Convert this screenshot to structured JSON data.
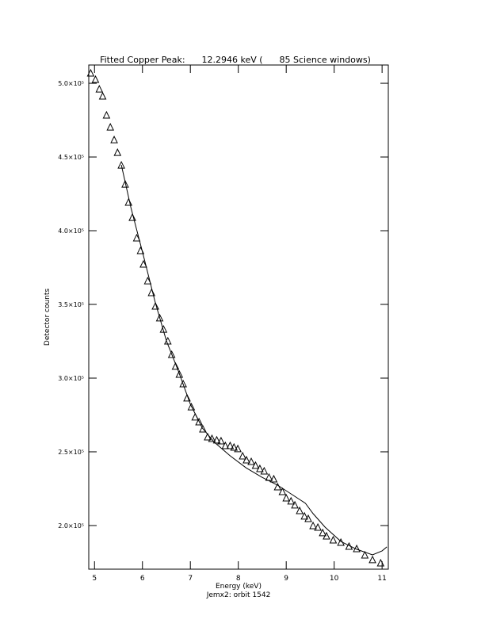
{
  "chart_data": {
    "type": "scatter",
    "title": "Fitted Copper Peak:      12.2946 keV (      85 Science windows)",
    "xlabel": "Energy (keV)",
    "subtitle": "Jemx2: orbit 1542",
    "ylabel": "Detector counts",
    "xlim": [
      4.88,
      11.13
    ],
    "ylim": [
      170400,
      512400
    ],
    "xticks": [
      5,
      6,
      7,
      8,
      9,
      10,
      11
    ],
    "yticks": [
      {
        "value": 200000,
        "label": "2.0×10⁵"
      },
      {
        "value": 250000,
        "label": "2.5×10⁵"
      },
      {
        "value": 300000,
        "label": "3.0×10⁵"
      },
      {
        "value": 350000,
        "label": "3.5×10⁵"
      },
      {
        "value": 400000,
        "label": "4.0×10⁵"
      },
      {
        "value": 450000,
        "label": "4.5×10⁵"
      },
      {
        "value": 500000,
        "label": "5.0×10⁵"
      }
    ],
    "color": "#000000",
    "x": [
      4.92,
      5.02,
      5.1,
      5.17,
      5.25,
      5.33,
      5.41,
      5.48,
      5.56,
      5.64,
      5.71,
      5.79,
      5.88,
      5.96,
      6.02,
      6.11,
      6.19,
      6.27,
      6.36,
      6.44,
      6.53,
      6.61,
      6.69,
      6.77,
      6.85,
      6.93,
      7.02,
      7.1,
      7.18,
      7.26,
      7.36,
      7.45,
      7.55,
      7.64,
      7.73,
      7.83,
      7.91,
      7.99,
      8.09,
      8.17,
      8.27,
      8.36,
      8.45,
      8.54,
      8.64,
      8.74,
      8.82,
      8.92,
      9.0,
      9.1,
      9.18,
      9.28,
      9.38,
      9.46,
      9.56,
      9.66,
      9.76,
      9.84,
      9.98,
      10.14,
      10.31,
      10.47,
      10.64,
      10.8,
      10.97
    ],
    "values": [
      507000,
      502700,
      496200,
      491400,
      478500,
      470400,
      461800,
      453200,
      444600,
      431700,
      419400,
      409100,
      395200,
      386600,
      377400,
      366100,
      358100,
      348900,
      340900,
      333300,
      325300,
      316100,
      308100,
      302700,
      296200,
      286600,
      280600,
      273700,
      270400,
      265600,
      260200,
      259100,
      258100,
      257500,
      254300,
      254300,
      253200,
      252200,
      247300,
      244600,
      243500,
      240900,
      238700,
      237100,
      232800,
      231700,
      226300,
      223100,
      218800,
      216700,
      214000,
      210200,
      206500,
      204800,
      200000,
      198900,
      195200,
      193000,
      190300,
      188700,
      186000,
      184400,
      180100,
      176900,
      174700
    ],
    "fit": {
      "x": [
        5.56,
        5.76,
        6.01,
        6.26,
        6.5,
        6.75,
        7.0,
        7.25,
        7.5,
        7.83,
        8.16,
        8.49,
        8.82,
        9.15,
        9.4,
        9.56,
        9.81,
        10.14,
        10.47,
        10.8,
        11.0,
        11.1
      ],
      "values": [
        444600,
        415600,
        384400,
        352200,
        325300,
        304800,
        282300,
        266100,
        256500,
        247300,
        239200,
        232800,
        227400,
        220400,
        215100,
        208100,
        198900,
        189200,
        183900,
        180100,
        182800,
        185500
      ]
    }
  }
}
